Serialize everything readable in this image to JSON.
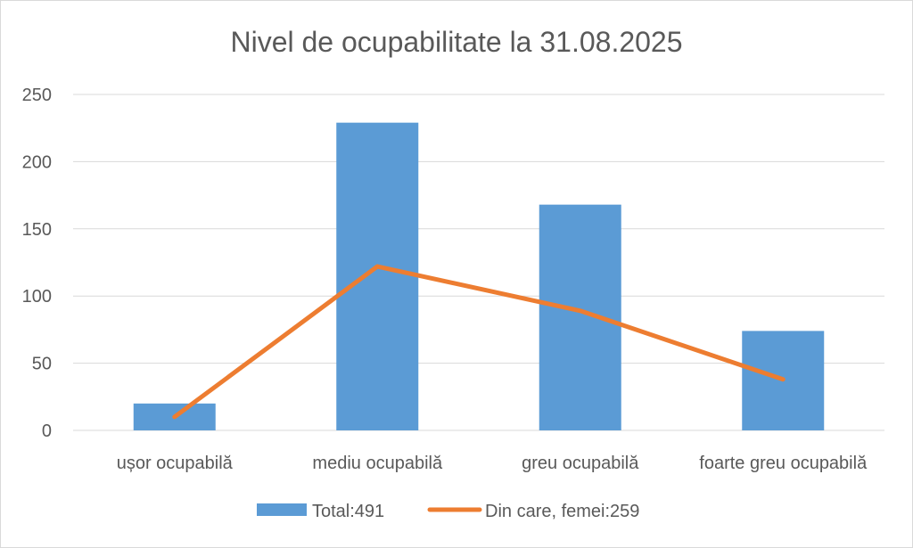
{
  "chart_data": {
    "type": "bar",
    "title": "Nivel de ocupabilitate la 31.08.2025",
    "categories": [
      "ușor ocupabilă",
      "mediu ocupabilă",
      "greu ocupabilă",
      "foarte greu ocupabilă"
    ],
    "series": [
      {
        "name": "Total:491",
        "type": "bar",
        "color": "#5b9bd5",
        "values": [
          20,
          229,
          168,
          74
        ]
      },
      {
        "name": "Din care, femei:259",
        "type": "line",
        "color": "#ed7d31",
        "values": [
          10,
          122,
          89,
          38
        ]
      }
    ],
    "ylim": [
      0,
      250
    ],
    "yticks": [
      0,
      50,
      100,
      150,
      200,
      250
    ],
    "grid": true,
    "legend": "bottom"
  }
}
